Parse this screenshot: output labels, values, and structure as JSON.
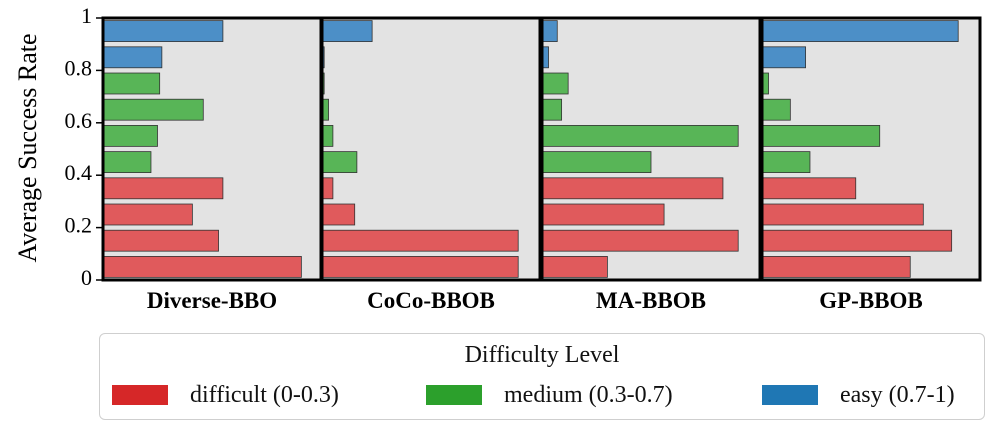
{
  "chart_data": {
    "type": "bar",
    "orientation": "horizontal",
    "ylabel": "Average Success Rate",
    "ylim": [
      0,
      1
    ],
    "yticks": [
      {
        "value": 0,
        "label": "0"
      },
      {
        "value": 0.2,
        "label": "0.2"
      },
      {
        "value": 0.4,
        "label": "0.4"
      },
      {
        "value": 0.6,
        "label": "0.6"
      },
      {
        "value": 0.8,
        "label": "0.8"
      },
      {
        "value": 1,
        "label": "1"
      }
    ],
    "bars_per_panel": 10,
    "bar_level_order_bottom_to_top": [
      "difficult",
      "difficult",
      "difficult",
      "difficult",
      "medium",
      "medium",
      "medium",
      "medium",
      "easy",
      "easy"
    ],
    "legend": {
      "title": "Difficulty Level",
      "placement": "bottom",
      "entries": [
        {
          "key": "difficult",
          "label": "difficult (0-0.3)",
          "color": "#d62728"
        },
        {
          "key": "medium",
          "label": "medium (0.3-0.7)",
          "color": "#2ca02c"
        },
        {
          "key": "easy",
          "label": "easy (0.7-1)",
          "color": "#1f77b4"
        }
      ]
    },
    "bar_colors": {
      "difficult": "#e05a5c",
      "medium": "#58b557",
      "easy": "#4c8fc7"
    },
    "panels": [
      {
        "label": "Diverse-BBO",
        "values_bottom_to_top": [
          0.91,
          0.53,
          0.41,
          0.55,
          0.22,
          0.25,
          0.46,
          0.26,
          0.27,
          0.55
        ]
      },
      {
        "label": "CoCo-BBOB",
        "values_bottom_to_top": [
          0.9,
          0.9,
          0.15,
          0.05,
          0.16,
          0.05,
          0.03,
          0.01,
          0.01,
          0.23
        ]
      },
      {
        "label": "MA-BBOB",
        "values_bottom_to_top": [
          0.3,
          0.9,
          0.56,
          0.83,
          0.5,
          0.9,
          0.09,
          0.12,
          0.03,
          0.07
        ]
      },
      {
        "label": "GP-BBOB",
        "values_bottom_to_top": [
          0.68,
          0.87,
          0.74,
          0.43,
          0.22,
          0.54,
          0.13,
          0.03,
          0.2,
          0.9
        ]
      }
    ]
  }
}
